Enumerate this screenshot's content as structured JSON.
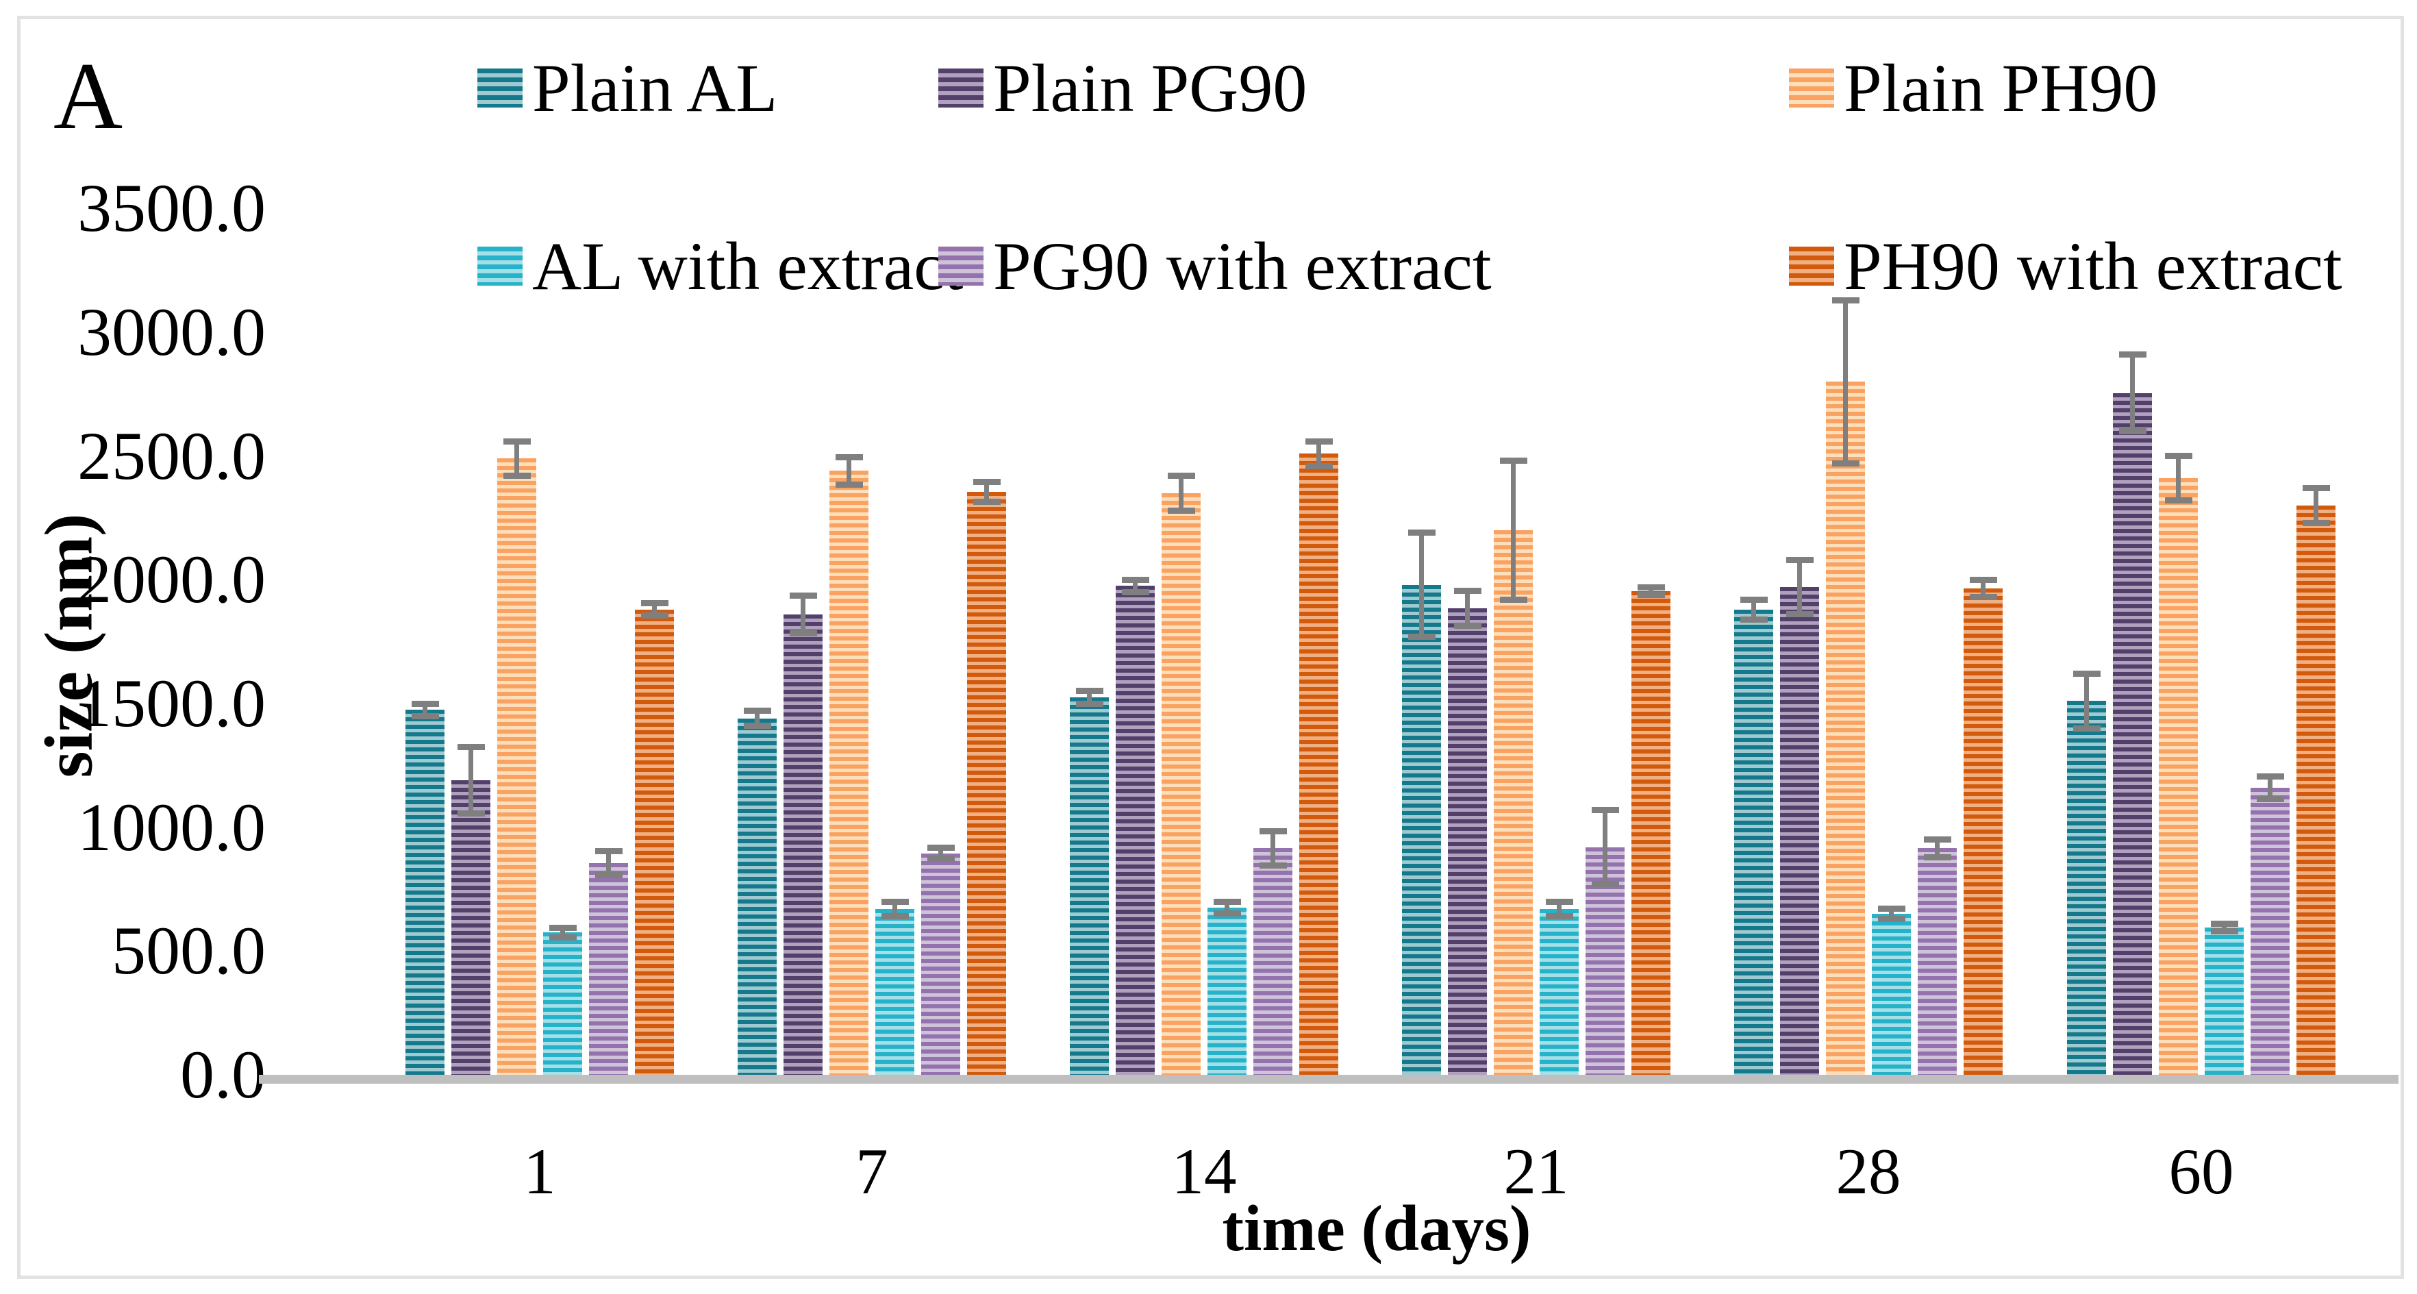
{
  "panel_label": "A",
  "chart_data": {
    "type": "bar",
    "title": "",
    "xlabel": "time (days)",
    "ylabel": "size (nm)",
    "categories": [
      "1",
      "7",
      "14",
      "21",
      "28",
      "60"
    ],
    "y_tick_labels": [
      "0.0",
      "500.0",
      "1000.0",
      "1500.0",
      "2000.0",
      "2500.0",
      "3000.0",
      "3500.0"
    ],
    "y_tick_values": [
      0,
      500,
      1000,
      1500,
      2000,
      2500,
      3000,
      3500
    ],
    "ylim": [
      0,
      3500
    ],
    "grid": false,
    "legend_position": "top",
    "error_bar_color": "#7f7f7f",
    "axis_line_color": "#bfbfbf",
    "bar_stripe_style": "horizontal-stripes",
    "series": [
      {
        "name": "Plain AL",
        "color_dark": "#15798c",
        "color_light": "#9fcad2",
        "values": [
          1475,
          1440,
          1525,
          1980,
          1880,
          1510
        ],
        "errors": [
          25,
          30,
          25,
          210,
          40,
          110
        ]
      },
      {
        "name": "Plain PG90",
        "color_dark": "#53406a",
        "color_light": "#b0a1bf",
        "values": [
          1190,
          1860,
          1975,
          1885,
          1970,
          2755
        ],
        "errors": [
          135,
          75,
          25,
          70,
          110,
          155
        ]
      },
      {
        "name": "Plain PH90",
        "color_dark": "#faa262",
        "color_light": "#fddfbb",
        "values": [
          2490,
          2440,
          2350,
          2200,
          2800,
          2410
        ],
        "errors": [
          70,
          55,
          70,
          280,
          330,
          90
        ]
      },
      {
        "name": "AL with extract",
        "color_dark": "#26b3c9",
        "color_light": "#a5dfe8",
        "values": [
          575,
          670,
          675,
          670,
          650,
          595
        ],
        "errors": [
          20,
          28,
          23,
          30,
          20,
          15
        ]
      },
      {
        "name": "PG90 with extract",
        "color_dark": "#9372ae",
        "color_light": "#cfc3da",
        "values": [
          855,
          895,
          915,
          920,
          915,
          1160
        ],
        "errors": [
          48,
          23,
          70,
          150,
          36,
          45
        ]
      },
      {
        "name": "PH90 with extract",
        "color_dark": "#d15a0c",
        "color_light": "#f1b083",
        "values": [
          1880,
          2355,
          2510,
          1955,
          1965,
          2300
        ],
        "errors": [
          25,
          40,
          50,
          15,
          35,
          70
        ]
      }
    ]
  }
}
